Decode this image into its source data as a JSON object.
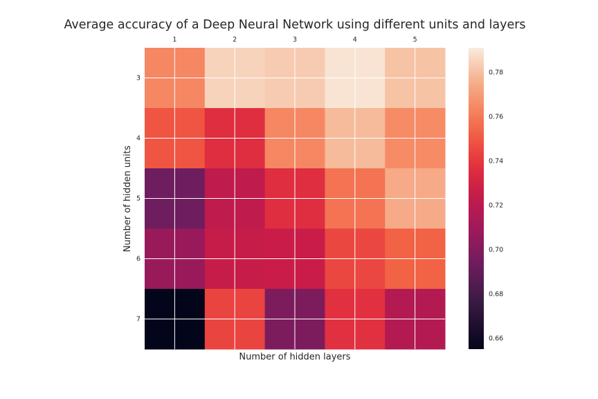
{
  "chart_data": {
    "type": "heatmap",
    "title": "Average accuracy of a Deep Neural Network using different units and layers",
    "xlabel": "Number of hidden layers",
    "ylabel": "Number of hidden units",
    "x_categories": [
      "1",
      "2",
      "3",
      "4",
      "5"
    ],
    "y_categories": [
      "3",
      "4",
      "5",
      "6",
      "7"
    ],
    "values": [
      [
        0.764,
        0.785,
        0.783,
        0.789,
        0.781
      ],
      [
        0.749,
        0.736,
        0.764,
        0.779,
        0.765
      ],
      [
        0.693,
        0.722,
        0.736,
        0.758,
        0.774
      ],
      [
        0.707,
        0.725,
        0.726,
        0.745,
        0.753
      ],
      [
        0.655,
        0.744,
        0.698,
        0.737,
        0.717
      ]
    ],
    "colorbar": {
      "range": [
        0.655,
        0.791
      ],
      "ticks": [
        "0.66",
        "0.68",
        "0.70",
        "0.72",
        "0.74",
        "0.76",
        "0.78"
      ],
      "colormap": "rocket"
    },
    "grid": true
  },
  "colors": {
    "grid_line": "#ffffff",
    "text": "#262626",
    "background": "#ffffff"
  }
}
